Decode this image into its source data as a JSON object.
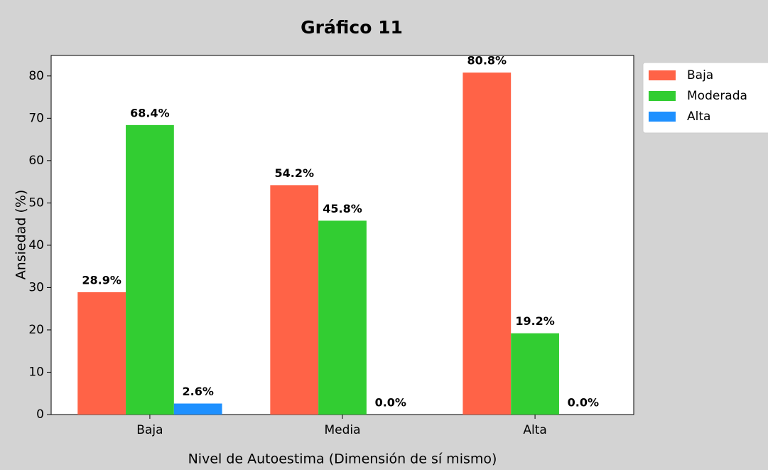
{
  "chart_data": {
    "type": "bar",
    "title": "Gráfico 11",
    "xlabel": "Nivel de Autoestima (Dimensión de sí mismo)",
    "ylabel": "Ansiedad (%)",
    "categories": [
      "Baja",
      "Media",
      "Alta"
    ],
    "series": [
      {
        "name": "Baja",
        "color": "#ff6347",
        "values": [
          28.9,
          54.2,
          80.8
        ],
        "value_labels": [
          "28.9%",
          "54.2%",
          "80.8%"
        ]
      },
      {
        "name": "Moderada",
        "color": "#32cd32",
        "values": [
          68.4,
          45.8,
          19.2
        ],
        "value_labels": [
          "68.4%",
          "45.8%",
          "19.2%"
        ]
      },
      {
        "name": "Alta",
        "color": "#1e90ff",
        "values": [
          2.6,
          0.0,
          0.0
        ],
        "value_labels": [
          "2.6%",
          "0.0%",
          "0.0%"
        ]
      }
    ],
    "ylim": [
      0,
      84.84
    ],
    "yticks": [
      0,
      10,
      20,
      30,
      40,
      50,
      60,
      70,
      80
    ],
    "legend": "outside-upper-right"
  }
}
